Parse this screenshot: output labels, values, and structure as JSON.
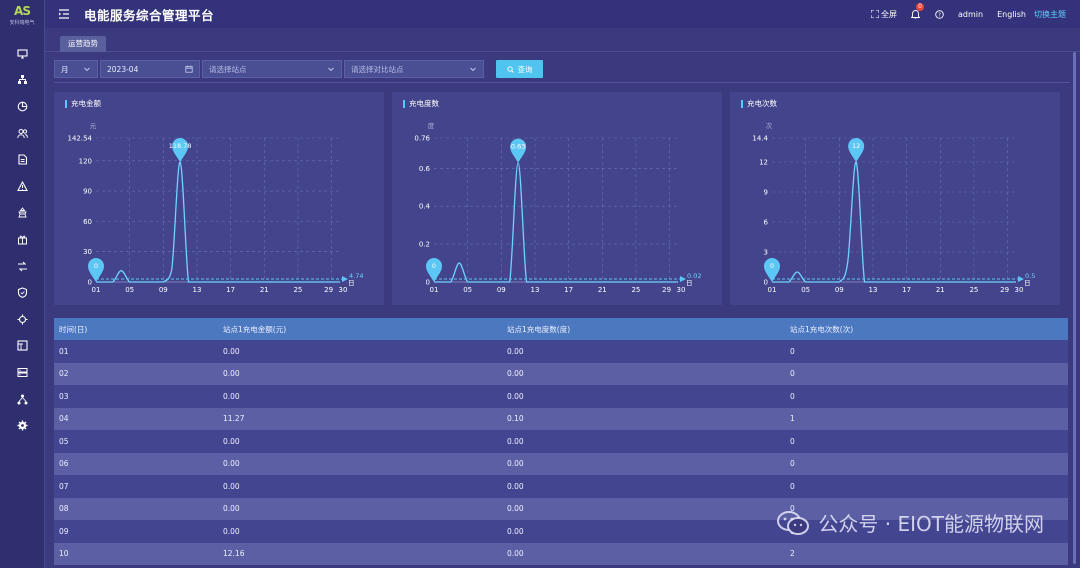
{
  "logo": {
    "mark": "AS",
    "text": "安科瑞电气"
  },
  "header": {
    "title": "电能服务综合管理平台",
    "fullscreen": "全屏",
    "notif_count": "0",
    "user": "admin",
    "lang": "English",
    "theme": "切换主题"
  },
  "sidebar_icons": [
    "monitor-icon",
    "topology-icon",
    "pie-chart-icon",
    "users-icon",
    "document-icon",
    "alarm-icon",
    "station-icon",
    "gift-icon",
    "settings-swap-icon",
    "shield-icon",
    "crosshair-icon",
    "grid-icon",
    "storage-icon",
    "network-icon",
    "gear-icon"
  ],
  "tab": "运营趋势",
  "filter": {
    "period": "月",
    "date": "2023-04",
    "station_placeholder": "请选择站点",
    "compare_placeholder": "请选择对比站点",
    "query": "查询"
  },
  "chart_data": [
    {
      "type": "line",
      "title": "充电金额",
      "unit": "元",
      "x_ticks": [
        "01",
        "05",
        "09",
        "13",
        "17",
        "21",
        "25",
        "29",
        "30"
      ],
      "y_ticks": [
        "0",
        "30",
        "60",
        "90",
        "120",
        "142.54"
      ],
      "ylim": [
        0,
        142.54
      ],
      "max_marker": "118.78",
      "min_marker": "0",
      "avg_label": "4.74",
      "series": [
        {
          "x": [
            1,
            2,
            3,
            4,
            5,
            6,
            7,
            8,
            9,
            10,
            11,
            12,
            13,
            14,
            15,
            16,
            17,
            18,
            19,
            20,
            21,
            22,
            23,
            24,
            25,
            26,
            27,
            28,
            29,
            30
          ],
          "values": [
            0,
            0,
            0,
            11.27,
            0,
            0,
            0,
            0,
            0,
            12.16,
            118.78,
            0,
            0,
            0,
            0,
            0,
            0,
            0,
            0,
            0,
            0,
            0,
            0,
            0,
            0,
            0,
            0,
            0,
            0,
            0
          ]
        }
      ]
    },
    {
      "type": "line",
      "title": "充电度数",
      "unit": "度",
      "x_ticks": [
        "01",
        "05",
        "09",
        "13",
        "17",
        "21",
        "25",
        "29",
        "30"
      ],
      "y_ticks": [
        "0",
        "0.2",
        "0.4",
        "0.6",
        "0.76"
      ],
      "ylim": [
        0,
        0.76
      ],
      "max_marker": "0.63",
      "min_marker": "0",
      "avg_label": "0.02",
      "series": [
        {
          "x": [
            1,
            2,
            3,
            4,
            5,
            6,
            7,
            8,
            9,
            10,
            11,
            12,
            13,
            14,
            15,
            16,
            17,
            18,
            19,
            20,
            21,
            22,
            23,
            24,
            25,
            26,
            27,
            28,
            29,
            30
          ],
          "values": [
            0,
            0,
            0,
            0.1,
            0,
            0,
            0,
            0,
            0,
            0,
            0.63,
            0,
            0,
            0,
            0,
            0,
            0,
            0,
            0,
            0,
            0,
            0,
            0,
            0,
            0,
            0,
            0,
            0,
            0,
            0
          ]
        }
      ]
    },
    {
      "type": "line",
      "title": "充电次数",
      "unit": "次",
      "x_ticks": [
        "01",
        "05",
        "09",
        "13",
        "17",
        "21",
        "25",
        "29",
        "30"
      ],
      "y_ticks": [
        "0",
        "3",
        "6",
        "9",
        "12",
        "14.4"
      ],
      "ylim": [
        0,
        14.4
      ],
      "max_marker": "12",
      "min_marker": "0",
      "avg_label": "0.5",
      "series": [
        {
          "x": [
            1,
            2,
            3,
            4,
            5,
            6,
            7,
            8,
            9,
            10,
            11,
            12,
            13,
            14,
            15,
            16,
            17,
            18,
            19,
            20,
            21,
            22,
            23,
            24,
            25,
            26,
            27,
            28,
            29,
            30
          ],
          "values": [
            0,
            0,
            0,
            1,
            0,
            0,
            0,
            0,
            0,
            2,
            12,
            0,
            0,
            0,
            0,
            0,
            0,
            0,
            0,
            0,
            0,
            0,
            0,
            0,
            0,
            0,
            0,
            0,
            0,
            0
          ]
        }
      ]
    }
  ],
  "x_axis_unit": "日",
  "table": {
    "headers": [
      "时间(日)",
      "站点1充电金额(元)",
      "站点1充电度数(度)",
      "站点1充电次数(次)"
    ],
    "rows": [
      [
        "01",
        "0.00",
        "0.00",
        "0"
      ],
      [
        "02",
        "0.00",
        "0.00",
        "0"
      ],
      [
        "03",
        "0.00",
        "0.00",
        "0"
      ],
      [
        "04",
        "11.27",
        "0.10",
        "1"
      ],
      [
        "05",
        "0.00",
        "0.00",
        "0"
      ],
      [
        "06",
        "0.00",
        "0.00",
        "0"
      ],
      [
        "07",
        "0.00",
        "0.00",
        "0"
      ],
      [
        "08",
        "0.00",
        "0.00",
        "0"
      ],
      [
        "09",
        "0.00",
        "0.00",
        "0"
      ],
      [
        "10",
        "12.16",
        "0.00",
        "2"
      ]
    ]
  },
  "watermark": "公众号 · EIOT能源物联网",
  "colors": {
    "accent": "#55c9f8",
    "bg": "#3b3a7e",
    "panel": "#43448b",
    "table_head": "#4c78c0"
  }
}
